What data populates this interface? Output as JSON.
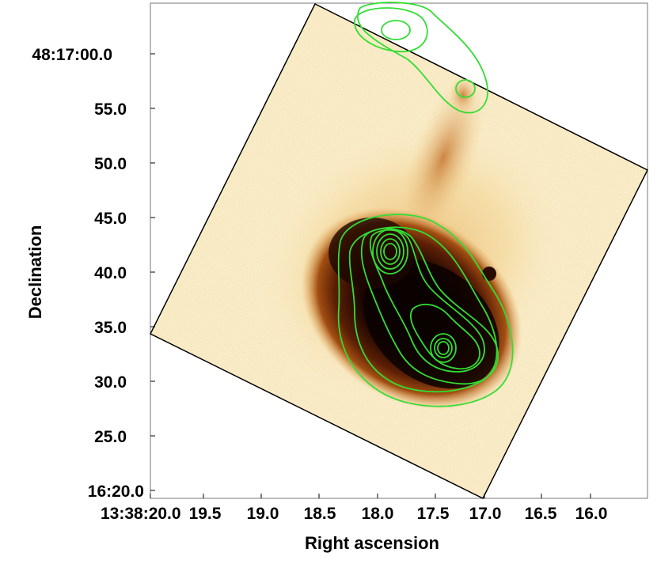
{
  "figure": {
    "y_axis_title": "Declination",
    "x_axis_title": "Right ascension",
    "y_ticks": [
      {
        "label": "48:17:00.0"
      },
      {
        "label": "55.0"
      },
      {
        "label": "50.0"
      },
      {
        "label": "45.0"
      },
      {
        "label": "40.0"
      },
      {
        "label": "35.0"
      },
      {
        "label": "30.0"
      },
      {
        "label": "25.0"
      },
      {
        "label": "16:20.0"
      }
    ],
    "x_ticks": [
      {
        "label": "13:38:20.0"
      },
      {
        "label": "19.5"
      },
      {
        "label": "19.0"
      },
      {
        "label": "18.5"
      },
      {
        "label": "18.0"
      },
      {
        "label": "17.5"
      },
      {
        "label": "17.0"
      },
      {
        "label": "16.5"
      },
      {
        "label": "16.0"
      }
    ]
  },
  "colors": {
    "frame": "#000000",
    "contour": "#33dd33",
    "background_pale": "#fdf6dc",
    "colormap_mid": "#c06a1d",
    "colormap_dark": "#1a0500"
  }
}
